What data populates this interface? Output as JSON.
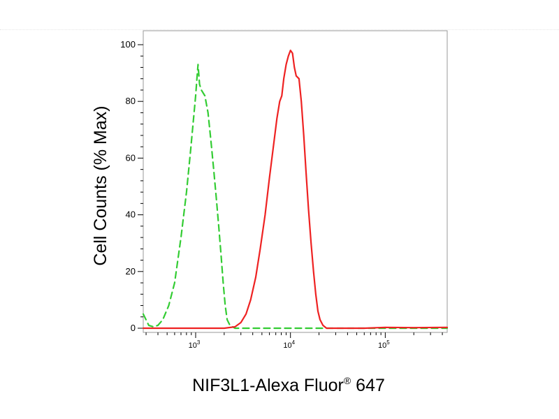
{
  "chart_data": {
    "type": "line",
    "xlabel": "NIF3L1-Alexa Fluor",
    "xlabel_sup": "®",
    "xlabel_tail": " 647",
    "ylabel": "Cell Counts (% Max)",
    "x_scale": "log",
    "xlim": [
      280,
      450000
    ],
    "ylim": [
      0,
      100
    ],
    "y_ticks": [
      0,
      20,
      40,
      60,
      80,
      100
    ],
    "x_ticks": [
      {
        "value": 1000,
        "base": "10",
        "exp": "3"
      },
      {
        "value": 10000,
        "base": "10",
        "exp": "4"
      },
      {
        "value": 100000,
        "base": "10",
        "exp": "5"
      }
    ],
    "grid": false,
    "series": [
      {
        "color": "#33cc33",
        "dash": "dashed",
        "points": [
          [
            280,
            5
          ],
          [
            320,
            1
          ],
          [
            360,
            0.5
          ],
          [
            400,
            1
          ],
          [
            450,
            3
          ],
          [
            520,
            8
          ],
          [
            600,
            16
          ],
          [
            700,
            32
          ],
          [
            800,
            48
          ],
          [
            880,
            62
          ],
          [
            950,
            74
          ],
          [
            1000,
            82
          ],
          [
            1030,
            88
          ],
          [
            1060,
            93
          ],
          [
            1100,
            86
          ],
          [
            1150,
            84
          ],
          [
            1250,
            82
          ],
          [
            1350,
            76
          ],
          [
            1450,
            66
          ],
          [
            1550,
            56
          ],
          [
            1650,
            46
          ],
          [
            1750,
            36
          ],
          [
            1850,
            26
          ],
          [
            1950,
            16
          ],
          [
            2050,
            8
          ],
          [
            2150,
            3
          ],
          [
            2300,
            1
          ],
          [
            2600,
            0
          ],
          [
            3000,
            0
          ],
          [
            4500,
            0
          ],
          [
            7000,
            0
          ],
          [
            12000,
            0
          ],
          [
            20000,
            0
          ],
          [
            35000,
            0
          ],
          [
            60000,
            0
          ],
          [
            100000,
            0
          ],
          [
            200000,
            0
          ],
          [
            450000,
            0
          ]
        ]
      },
      {
        "color": "#ee2222",
        "dash": "solid",
        "points": [
          [
            280,
            0
          ],
          [
            1000,
            0
          ],
          [
            2000,
            0
          ],
          [
            2600,
            0.5
          ],
          [
            3000,
            2
          ],
          [
            3400,
            5
          ],
          [
            3800,
            10
          ],
          [
            4300,
            18
          ],
          [
            4800,
            28
          ],
          [
            5400,
            40
          ],
          [
            6000,
            53
          ],
          [
            6600,
            64
          ],
          [
            7200,
            74
          ],
          [
            7700,
            80
          ],
          [
            8100,
            82
          ],
          [
            8500,
            88
          ],
          [
            9000,
            93
          ],
          [
            9500,
            96
          ],
          [
            10000,
            98
          ],
          [
            10500,
            97
          ],
          [
            11000,
            92
          ],
          [
            11500,
            89
          ],
          [
            12300,
            88
          ],
          [
            13000,
            80
          ],
          [
            13800,
            68
          ],
          [
            14600,
            55
          ],
          [
            15500,
            42
          ],
          [
            16500,
            30
          ],
          [
            17500,
            20
          ],
          [
            18500,
            12
          ],
          [
            19500,
            6
          ],
          [
            20500,
            3
          ],
          [
            22000,
            1
          ],
          [
            24000,
            0
          ],
          [
            30000,
            0
          ],
          [
            60000,
            0
          ],
          [
            100000,
            0.3
          ],
          [
            200000,
            0.2
          ],
          [
            450000,
            0.3
          ]
        ]
      }
    ]
  }
}
